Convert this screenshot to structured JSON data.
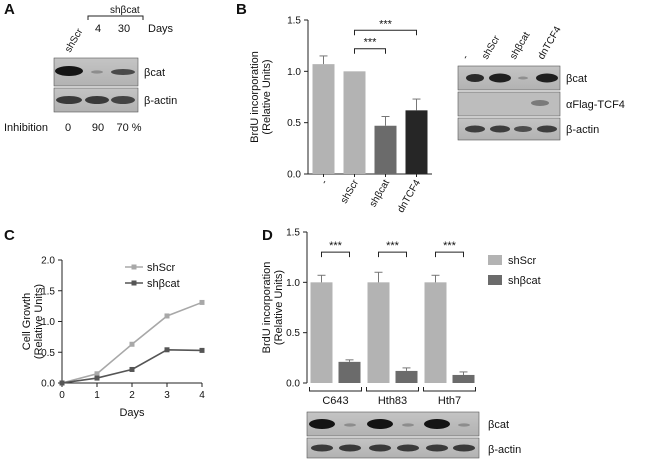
{
  "panels": {
    "A": {
      "letter": "A",
      "lanes": [
        "shScr",
        "shβcat"
      ],
      "days_values": [
        "4",
        "30"
      ],
      "days_label": "Days",
      "bands": [
        "βcat",
        "β-actin"
      ],
      "inhibition_label": "Inhibition",
      "inhibition_values": [
        "0",
        "90",
        "70 %"
      ]
    },
    "B": {
      "letter": "B",
      "blot_lanes": [
        "-",
        "shScr",
        "shβcat",
        "dnTCF4"
      ],
      "blot_bands": [
        "βcat",
        "αFlag-TCF4",
        "β-actin"
      ]
    },
    "C": {
      "letter": "C"
    },
    "D": {
      "letter": "D",
      "blot_bands": [
        "βcat",
        "β-actin"
      ]
    }
  },
  "chart_data": [
    {
      "id": "B",
      "type": "bar",
      "categories": [
        "-",
        "shScr",
        "shβcat",
        "dnTCF4"
      ],
      "values": [
        1.07,
        1.0,
        0.47,
        0.62
      ],
      "errors": [
        0.08,
        0.0,
        0.09,
        0.11
      ],
      "colors": [
        "#b3b3b3",
        "#b3b3b3",
        "#6b6b6b",
        "#262626"
      ],
      "title": "",
      "xlabel": "",
      "ylabel": [
        "BrdU incorporation",
        "(Relative Units)"
      ],
      "ylim": [
        0,
        1.5
      ],
      "yticks": [
        "0.0",
        "0.5",
        "1.0",
        "1.5"
      ],
      "significance": [
        "***",
        "***"
      ]
    },
    {
      "id": "C",
      "type": "line",
      "x": [
        0,
        1,
        2,
        3,
        4
      ],
      "xticks": [
        "0",
        "1",
        "2",
        "3",
        "4"
      ],
      "series": [
        {
          "name": "shScr",
          "color": "#a8a8a8",
          "values": [
            0.0,
            0.15,
            0.63,
            1.09,
            1.31
          ]
        },
        {
          "name": "shβcat",
          "color": "#555555",
          "values": [
            0.0,
            0.08,
            0.22,
            0.54,
            0.53
          ]
        }
      ],
      "title": "",
      "xlabel": "Days",
      "ylabel": [
        "Cell Growth",
        "(Relative Units)"
      ],
      "ylim": [
        0,
        2.0
      ],
      "yticks": [
        "0.0",
        "0.5",
        "1.0",
        "1.5",
        "2.0"
      ]
    },
    {
      "id": "D",
      "type": "bar",
      "categories": [
        "C643",
        "Hth83",
        "Hth7"
      ],
      "series": [
        {
          "name": "shScr",
          "color": "#b3b3b3",
          "values": [
            1.0,
            1.0,
            1.0
          ],
          "errors": [
            0.07,
            0.1,
            0.07
          ]
        },
        {
          "name": "shβcat",
          "color": "#6b6b6b",
          "values": [
            0.21,
            0.12,
            0.08
          ],
          "errors": [
            0.02,
            0.03,
            0.03
          ]
        }
      ],
      "title": "",
      "xlabel": "",
      "ylabel": [
        "BrdU incorporation",
        "(Relative Units)"
      ],
      "ylim": [
        0,
        1.5
      ],
      "yticks": [
        "0.0",
        "0.5",
        "1.0",
        "1.5"
      ],
      "significance": [
        "***",
        "***",
        "***"
      ]
    }
  ]
}
